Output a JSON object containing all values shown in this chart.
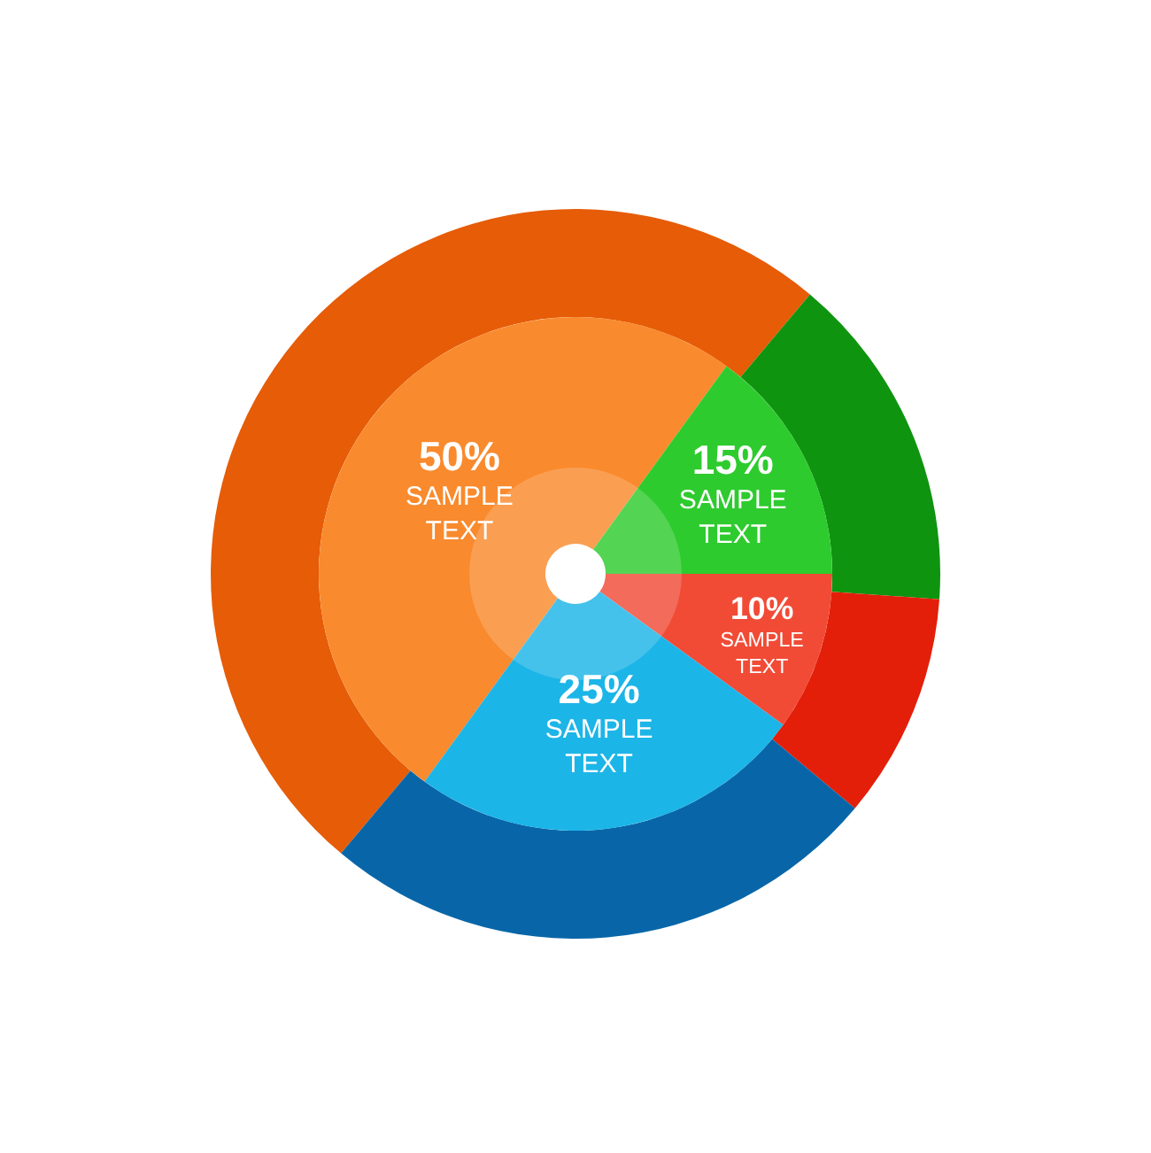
{
  "chart_data": {
    "type": "donut",
    "categories": [
      "SAMPLE TEXT",
      "SAMPLE TEXT",
      "SAMPLE TEXT",
      "SAMPLE TEXT"
    ],
    "series": [
      {
        "values": [
          50,
          15,
          10,
          25
        ],
        "colors": [
          "#e65c07",
          "#0f9410",
          "#e31f0a",
          "#0866a8"
        ]
      },
      {
        "values": [
          50,
          15,
          10,
          25
        ],
        "colors": [
          "#f98a2d",
          "#2ecb2e",
          "#f14b36",
          "#1cb5e8"
        ],
        "value_labels": [
          "50%",
          "15%",
          "10%",
          "25%"
        ]
      }
    ]
  }
}
